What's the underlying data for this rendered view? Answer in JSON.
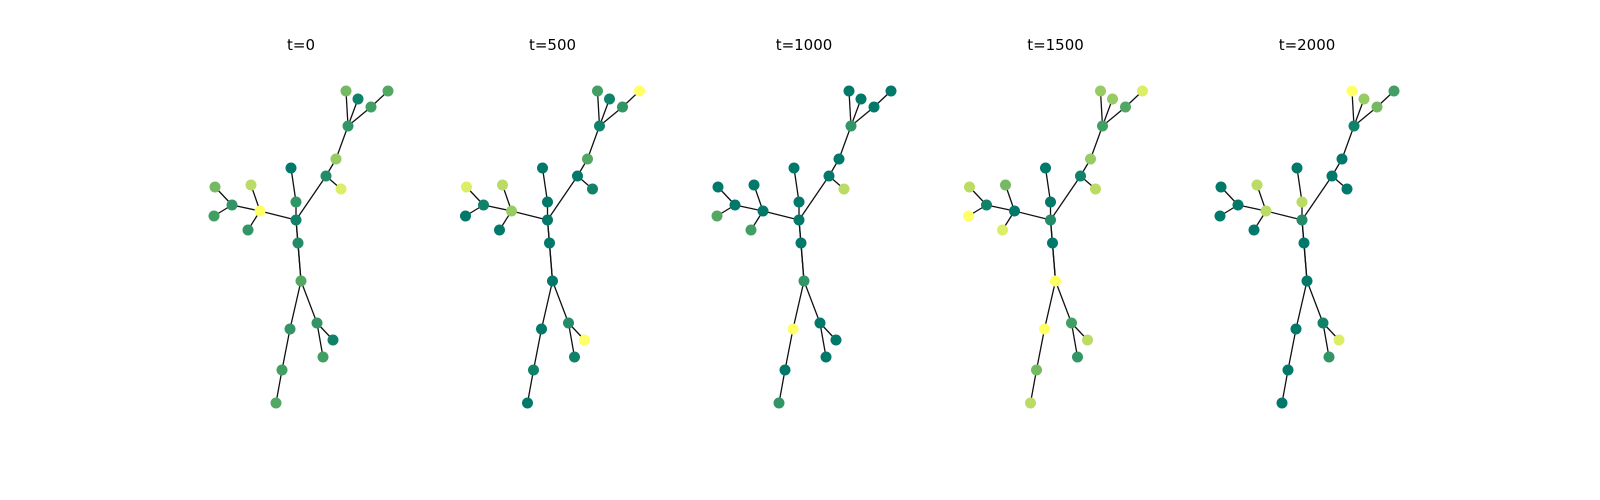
{
  "figure": {
    "panels": [
      {
        "title": "t=0",
        "node_values": [
          0.6,
          0.1,
          0.5,
          0.4,
          0.3,
          0.7,
          0.2,
          0.9,
          0.1,
          0.3,
          0.0,
          1.0,
          0.3,
          0.6,
          0.4,
          0.8,
          0.3,
          0.2,
          0.5,
          0.3,
          0.4,
          0.5,
          0.3,
          0.4,
          0.1
        ]
      },
      {
        "title": "t=500",
        "node_values": [
          0.4,
          0.1,
          1.0,
          0.3,
          0.1,
          0.5,
          0.0,
          0.1,
          0.0,
          0.0,
          0.0,
          0.7,
          0.1,
          0.9,
          0.0,
          0.8,
          0.0,
          0.0,
          0.0,
          0.0,
          0.1,
          0.0,
          0.2,
          0.1,
          1.0
        ]
      },
      {
        "title": "t=1000",
        "node_values": [
          0.0,
          0.0,
          0.0,
          0.0,
          0.3,
          0.0,
          0.0,
          0.8,
          0.0,
          0.0,
          0.0,
          0.0,
          0.0,
          0.0,
          0.5,
          0.0,
          0.4,
          0.0,
          0.3,
          1.0,
          0.0,
          0.3,
          0.0,
          0.0,
          0.0
        ]
      },
      {
        "title": "t=1500",
        "node_values": [
          0.7,
          0.7,
          0.9,
          0.5,
          0.4,
          0.7,
          0.1,
          0.8,
          0.2,
          0.0,
          0.0,
          0.0,
          0.1,
          0.8,
          1.0,
          0.6,
          0.9,
          0.0,
          1.0,
          1.0,
          0.6,
          0.8,
          0.4,
          0.3,
          0.8
        ]
      },
      {
        "title": "t=2000",
        "node_values": [
          1.0,
          0.7,
          0.4,
          0.6,
          0.1,
          0.0,
          0.0,
          0.0,
          0.2,
          0.8,
          0.0,
          0.8,
          0.0,
          0.0,
          0.0,
          0.8,
          0.0,
          0.0,
          0.0,
          0.0,
          0.0,
          0.0,
          0.1,
          0.3,
          0.9
        ]
      }
    ],
    "edges": [
      [
        0,
        4
      ],
      [
        1,
        4
      ],
      [
        2,
        4
      ],
      [
        3,
        5
      ],
      [
        5,
        4
      ],
      [
        4,
        6
      ],
      [
        6,
        7
      ],
      [
        6,
        8
      ],
      [
        8,
        9
      ],
      [
        9,
        10
      ],
      [
        10,
        11
      ],
      [
        11,
        12
      ],
      [
        13,
        14
      ],
      [
        14,
        12
      ],
      [
        15,
        14
      ],
      [
        16,
        12
      ],
      [
        17,
        12
      ],
      [
        12,
        18
      ],
      [
        18,
        19
      ],
      [
        19,
        20
      ],
      [
        20,
        21
      ],
      [
        21,
        22
      ],
      [
        20,
        23
      ],
      [
        23,
        24
      ],
      [
        10,
        24
      ]
    ],
    "colormap": {
      "low": "#00796b",
      "mid": "#52a862",
      "high": "#ffff66"
    }
  }
}
